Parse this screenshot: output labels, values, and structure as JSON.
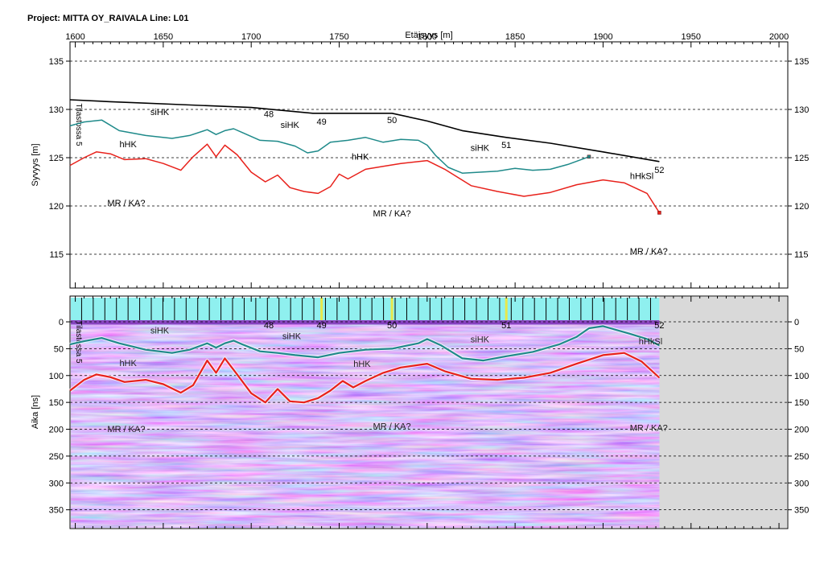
{
  "header": {
    "title": "Project: MITTA OY_RAIVALA  Line: L01"
  },
  "colors": {
    "surface": "#000000",
    "interface_teal": "#1f8a8a",
    "interface_red": "#e8211b",
    "grid": "#000000",
    "marker_fill": "#8ff0ef",
    "radar_gray": "#d9d9d9"
  },
  "chart_data": [
    {
      "type": "line",
      "name": "depth-profile",
      "title": "",
      "xlabel": "Etäisyys [m]",
      "ylabel": "Syvyys [m]",
      "xlim": [
        1597,
        2005
      ],
      "ylim": [
        111.5,
        137
      ],
      "x_ticks": [
        1600,
        1650,
        1700,
        1750,
        1800,
        1850,
        1900,
        1950,
        2000
      ],
      "y_ticks": [
        115,
        120,
        125,
        130,
        135
      ],
      "grid": "horizontal dashed",
      "side_label": "Tilastossa 5",
      "series": [
        {
          "key": "surface",
          "x": [
            1597,
            1620,
            1660,
            1700,
            1735,
            1780,
            1800,
            1820,
            1845,
            1870,
            1900,
            1932
          ],
          "y": [
            131.0,
            130.8,
            130.5,
            130.2,
            129.6,
            129.6,
            128.8,
            127.8,
            127.1,
            126.5,
            125.6,
            124.6
          ]
        },
        {
          "key": "interface_teal",
          "x": [
            1597,
            1605,
            1615,
            1625,
            1640,
            1655,
            1665,
            1675,
            1680,
            1685,
            1690,
            1695,
            1705,
            1715,
            1725,
            1732,
            1738,
            1745,
            1755,
            1765,
            1775,
            1785,
            1795,
            1800,
            1805,
            1812,
            1820,
            1830,
            1840,
            1850,
            1860,
            1870,
            1880,
            1892
          ],
          "y": [
            128.3,
            128.7,
            128.9,
            127.8,
            127.3,
            127.0,
            127.3,
            127.9,
            127.4,
            127.8,
            128.0,
            127.6,
            126.8,
            126.7,
            126.2,
            125.5,
            125.7,
            126.6,
            126.8,
            127.1,
            126.6,
            126.9,
            126.8,
            126.3,
            125.2,
            124.0,
            123.4,
            123.5,
            123.6,
            123.9,
            123.7,
            123.8,
            124.3,
            125.1
          ]
        },
        {
          "key": "interface_red",
          "x": [
            1597,
            1605,
            1612,
            1620,
            1628,
            1640,
            1650,
            1660,
            1667,
            1675,
            1680,
            1685,
            1692,
            1700,
            1708,
            1715,
            1722,
            1730,
            1738,
            1745,
            1750,
            1755,
            1760,
            1765,
            1775,
            1785,
            1800,
            1810,
            1825,
            1840,
            1855,
            1870,
            1885,
            1900,
            1912,
            1925,
            1932
          ],
          "y": [
            124.2,
            125.0,
            125.6,
            125.4,
            124.8,
            124.9,
            124.4,
            123.7,
            125.1,
            126.4,
            125.1,
            126.3,
            125.3,
            123.5,
            122.5,
            123.2,
            121.9,
            121.5,
            121.3,
            122.0,
            123.3,
            122.8,
            123.3,
            123.8,
            124.1,
            124.4,
            124.7,
            123.8,
            122.1,
            121.5,
            121.0,
            121.4,
            122.2,
            122.7,
            122.4,
            121.3,
            119.3
          ]
        }
      ],
      "markers": [
        {
          "label": "48",
          "x": 1710,
          "y": 129.2
        },
        {
          "label": "49",
          "x": 1740,
          "y": 128.4
        },
        {
          "label": "50",
          "x": 1780,
          "y": 128.6
        },
        {
          "label": "51",
          "x": 1845,
          "y": 126.0
        },
        {
          "label": "52",
          "x": 1932,
          "y": 123.4
        }
      ],
      "annotations": [
        {
          "text": "siHK",
          "x": 1648,
          "y": 129.4
        },
        {
          "text": "siHK",
          "x": 1722,
          "y": 128.1
        },
        {
          "text": "siHK",
          "x": 1830,
          "y": 125.7
        },
        {
          "text": "hHK",
          "x": 1630,
          "y": 126.1
        },
        {
          "text": "hHK",
          "x": 1762,
          "y": 124.8
        },
        {
          "text": "hHkSl",
          "x": 1922,
          "y": 122.8
        },
        {
          "text": "MR / KA?",
          "x": 1629,
          "y": 120.0
        },
        {
          "text": "MR / KA?",
          "x": 1780,
          "y": 118.9
        },
        {
          "text": "MR / KA?",
          "x": 1926,
          "y": 115.0
        }
      ]
    },
    {
      "type": "line",
      "name": "radargram",
      "title": "",
      "xlabel": "",
      "ylabel": "Aika [ns]",
      "xlim": [
        1597,
        2005
      ],
      "ylim": [
        -48,
        385
      ],
      "y_ticks": [
        0,
        50,
        100,
        150,
        200,
        250,
        300,
        350
      ],
      "grid": "horizontal dashed",
      "data_extent_x": [
        1597,
        1932
      ],
      "side_label": "Tilastossa 5",
      "series": [
        {
          "key": "interface_teal",
          "x": [
            1597,
            1605,
            1615,
            1625,
            1640,
            1655,
            1665,
            1675,
            1680,
            1685,
            1690,
            1695,
            1705,
            1715,
            1725,
            1738,
            1750,
            1765,
            1780,
            1795,
            1800,
            1808,
            1820,
            1832,
            1845,
            1860,
            1875,
            1885,
            1892,
            1900,
            1915,
            1925,
            1932
          ],
          "y": [
            42,
            36,
            30,
            40,
            52,
            58,
            52,
            40,
            48,
            40,
            35,
            42,
            55,
            58,
            62,
            66,
            58,
            52,
            50,
            40,
            32,
            44,
            68,
            72,
            64,
            56,
            42,
            28,
            12,
            8,
            22,
            32,
            44
          ]
        },
        {
          "key": "interface_red",
          "x": [
            1597,
            1605,
            1612,
            1620,
            1628,
            1640,
            1650,
            1660,
            1667,
            1675,
            1680,
            1685,
            1692,
            1700,
            1708,
            1715,
            1722,
            1730,
            1738,
            1745,
            1752,
            1758,
            1765,
            1775,
            1785,
            1800,
            1810,
            1825,
            1840,
            1855,
            1870,
            1885,
            1900,
            1912,
            1922,
            1932
          ],
          "y": [
            128,
            108,
            98,
            103,
            112,
            108,
            116,
            132,
            118,
            72,
            95,
            68,
            98,
            133,
            150,
            125,
            148,
            150,
            142,
            128,
            110,
            122,
            110,
            95,
            85,
            78,
            92,
            106,
            108,
            104,
            95,
            78,
            62,
            58,
            74,
            104
          ]
        }
      ],
      "markers": [
        {
          "label": "48",
          "x": 1710
        },
        {
          "label": "49",
          "x": 1740
        },
        {
          "label": "50",
          "x": 1780
        },
        {
          "label": "51",
          "x": 1845
        },
        {
          "label": "52",
          "x": 1932
        }
      ],
      "annotations": [
        {
          "text": "siHK",
          "x": 1648,
          "y": 22
        },
        {
          "text": "siHK",
          "x": 1723,
          "y": 32
        },
        {
          "text": "siHK",
          "x": 1830,
          "y": 38
        },
        {
          "text": "hHK",
          "x": 1630,
          "y": 82
        },
        {
          "text": "hHK",
          "x": 1763,
          "y": 84
        },
        {
          "text": "hHkSl",
          "x": 1927,
          "y": 42
        },
        {
          "text": "MR / KA?",
          "x": 1629,
          "y": 205
        },
        {
          "text": "MR / KA?",
          "x": 1780,
          "y": 200
        },
        {
          "text": "MR / KA?",
          "x": 1926,
          "y": 203
        }
      ]
    }
  ]
}
